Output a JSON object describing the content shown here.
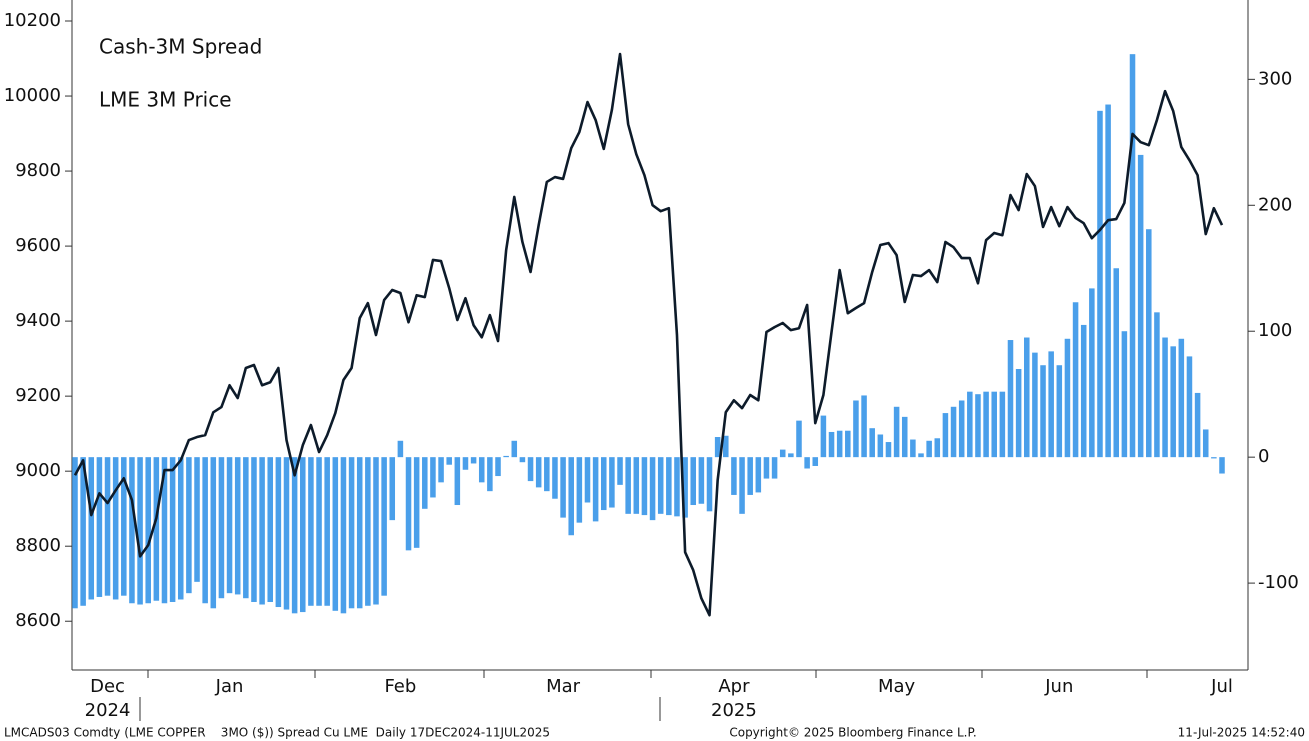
{
  "chart_data": {
    "type": "combo",
    "legend": "upper left",
    "categories": [
      null,
      null,
      null,
      null,
      "Dec",
      null,
      null,
      null,
      null,
      null,
      null,
      null,
      null,
      null,
      null,
      null,
      null,
      null,
      null,
      "Jan",
      null,
      null,
      null,
      null,
      null,
      null,
      null,
      null,
      null,
      null,
      null,
      null,
      null,
      null,
      null,
      null,
      null,
      null,
      null,
      null,
      "Feb",
      null,
      null,
      null,
      null,
      null,
      null,
      null,
      null,
      null,
      null,
      null,
      null,
      null,
      null,
      null,
      null,
      null,
      null,
      null,
      "Mar",
      null,
      null,
      null,
      null,
      null,
      null,
      null,
      null,
      null,
      null,
      null,
      null,
      null,
      null,
      null,
      null,
      null,
      null,
      null,
      null,
      "Apr",
      null,
      null,
      null,
      null,
      null,
      null,
      null,
      null,
      null,
      null,
      null,
      null,
      null,
      null,
      null,
      null,
      null,
      null,
      null,
      "May",
      null,
      null,
      null,
      null,
      null,
      null,
      null,
      null,
      null,
      null,
      null,
      null,
      null,
      null,
      null,
      null,
      null,
      null,
      null,
      "Jun",
      null,
      null,
      null,
      null,
      null,
      null,
      null,
      null,
      null,
      null,
      null,
      null,
      null,
      null,
      null,
      null,
      null,
      null,
      null,
      "Jul"
    ],
    "year_labels": [
      {
        "under": "Dec",
        "label": "2024"
      },
      {
        "under": "Apr",
        "label": "2025"
      }
    ],
    "series": [
      {
        "name": "Cash-3M Spread",
        "type": "bar",
        "axis": "y2",
        "color": "#4a9fea",
        "values": [
          -120,
          -118,
          -113,
          -111,
          -110,
          -113,
          -110,
          -116,
          -117,
          -116,
          -114,
          -116,
          -115,
          -113,
          -108,
          -99,
          -116,
          -120,
          -112,
          -108,
          -109,
          -112,
          -115,
          -117,
          -115,
          -119,
          -121,
          -124,
          -123,
          -118,
          -118,
          -118,
          -122,
          -124,
          -120,
          -120,
          -118,
          -117,
          -110,
          -50,
          13,
          -74,
          -72,
          -41,
          -32,
          -20,
          -6,
          -38,
          -10,
          -5,
          -20,
          -27,
          -15,
          1,
          13,
          -4,
          -19,
          -24,
          -27,
          -33,
          -48,
          -62,
          -52,
          -36,
          -51,
          -42,
          -40,
          -22,
          -45,
          -45,
          -46,
          -50,
          -45,
          -46,
          -47,
          -48,
          -38,
          -37,
          -43,
          16,
          17,
          -30,
          -45,
          -30,
          -28,
          -17,
          -17,
          6,
          3,
          29,
          -9,
          -7,
          33,
          20,
          21,
          21,
          45,
          49,
          23,
          18,
          12,
          40,
          32,
          14,
          3,
          13,
          15,
          35,
          40,
          45,
          52,
          50,
          52,
          52,
          52,
          93,
          70,
          95,
          83,
          73,
          84,
          73,
          94,
          123,
          105,
          134,
          275,
          280,
          150,
          100,
          320,
          240,
          181,
          115,
          95,
          88,
          94,
          80,
          51,
          22,
          -1,
          -13
        ]
      },
      {
        "name": "LME 3M Price",
        "type": "line",
        "color": "#0d1b2a",
        "values": [
          8989,
          9029,
          8883,
          8941,
          8915,
          8949,
          8981,
          8923,
          8773,
          8803,
          8875,
          9003,
          9003,
          9029,
          9083,
          9091,
          9096,
          9157,
          9171,
          9229,
          9195,
          9275,
          9283,
          9229,
          9237,
          9275,
          9083,
          8989,
          9069,
          9123,
          9051,
          9096,
          9155,
          9243,
          9275,
          9408,
          9448,
          9363,
          9456,
          9483,
          9475,
          9397,
          9469,
          9464,
          9563,
          9560,
          9488,
          9403,
          9461,
          9389,
          9357,
          9416,
          9347,
          9589,
          9731,
          9611,
          9531,
          9656,
          9771,
          9784,
          9779,
          9861,
          9904,
          9984,
          9936,
          9859,
          9963,
          10112,
          9925,
          9845,
          9789,
          9709,
          9693,
          9701,
          9363,
          8784,
          8736,
          8661,
          8616,
          8976,
          9157,
          9189,
          9168,
          9203,
          9189,
          9371,
          9384,
          9395,
          9376,
          9381,
          9443,
          9128,
          9203,
          9371,
          9536,
          9421,
          9435,
          9448,
          9531,
          9603,
          9608,
          9576,
          9451,
          9523,
          9520,
          9536,
          9504,
          9611,
          9597,
          9568,
          9568,
          9501,
          9616,
          9635,
          9629,
          9736,
          9696,
          9792,
          9760,
          9651,
          9704,
          9653,
          9704,
          9675,
          9661,
          9621,
          9643,
          9669,
          9672,
          9715,
          9899,
          9877,
          9869,
          9936,
          10013,
          9960,
          9864,
          9829,
          9789,
          9632,
          9701,
          9656
        ]
      }
    ],
    "ylim": [
      8470,
      10256
    ],
    "yticks": [
      8600,
      8800,
      9000,
      9200,
      9400,
      9600,
      9800,
      10000,
      10200
    ],
    "y2lim": [
      -169,
      363
    ],
    "y2ticks": [
      -100,
      0,
      100,
      200,
      300
    ],
    "grid": false,
    "footer": {
      "left": "LMCADS03 Comdty (LME COPPER    3MO ($)) Spread Cu LME  Daily 17DEC2024-11JUL2025",
      "center": "Copyright© 2025 Bloomberg Finance L.P.",
      "right": "11-Jul-2025 14:52:40"
    }
  }
}
